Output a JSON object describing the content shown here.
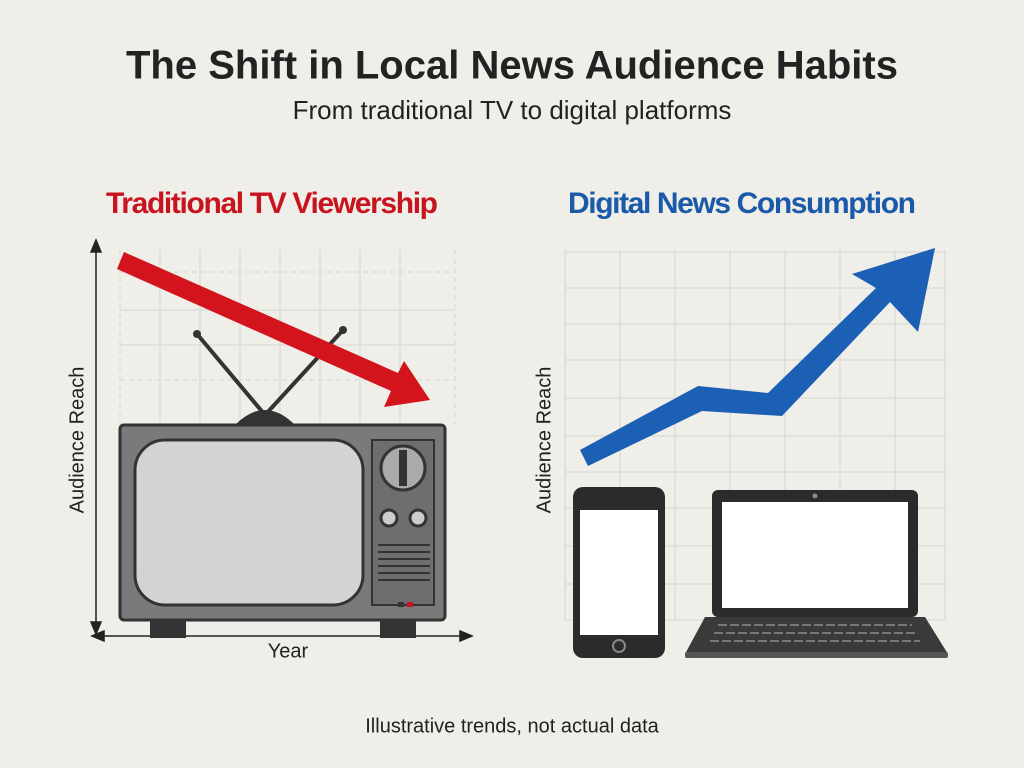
{
  "header": {
    "title": "The Shift in Local News Audience Habits",
    "subtitle": "From traditional TV to digital platforms"
  },
  "panels": [
    {
      "title": "Traditional TV Viewership",
      "y_label": "Audience Reach",
      "x_label": "Year"
    },
    {
      "title": "Digital News Consumption",
      "y_label": "Audience Reach"
    }
  ],
  "footnote": "Illustrative trends, not actual data"
}
